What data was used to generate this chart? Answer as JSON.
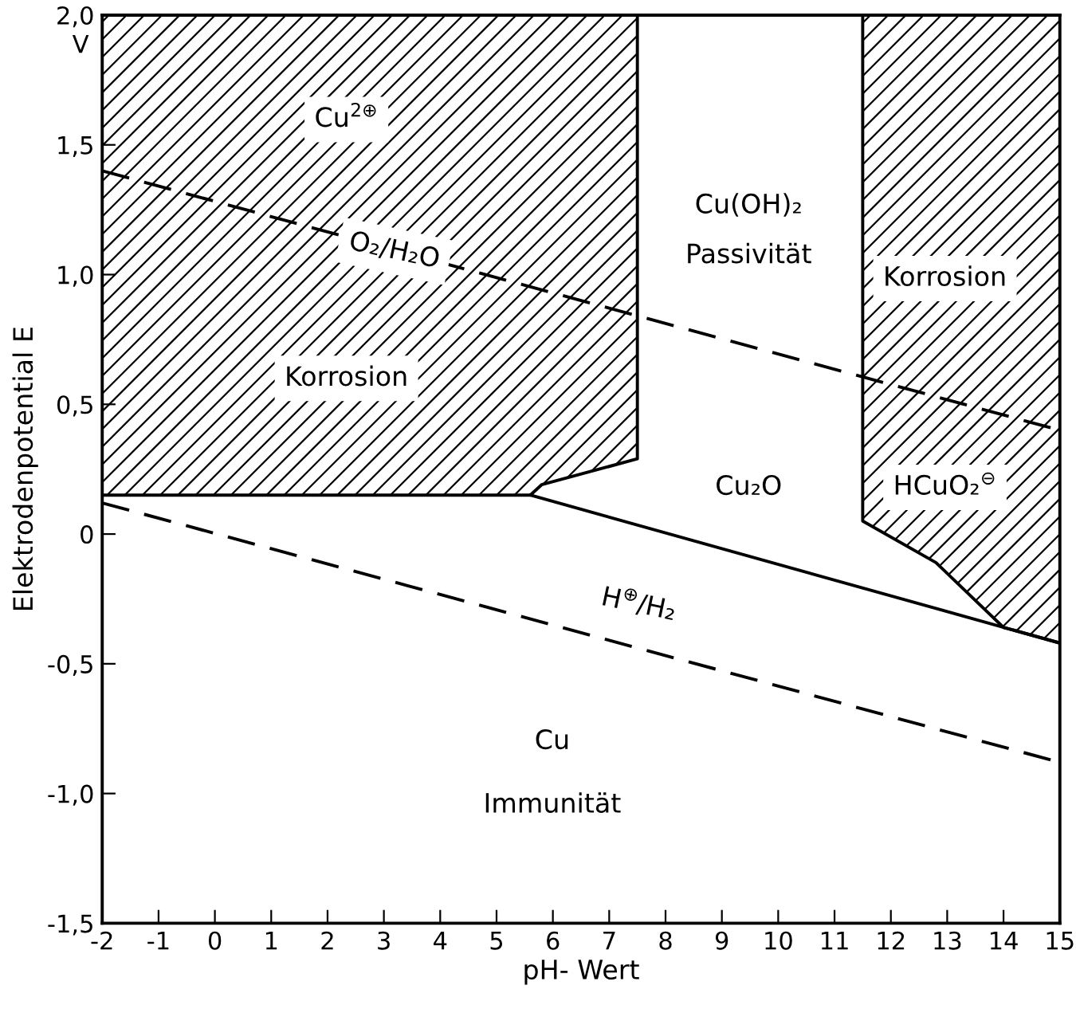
{
  "chart_data": {
    "type": "line",
    "xlabel": "pH- Wert",
    "ylabel": "Elektrodenpotential E",
    "xlim": [
      -2,
      15
    ],
    "ylim": [
      -1.5,
      2.0
    ],
    "xticks": [
      -2,
      -1,
      0,
      1,
      2,
      3,
      4,
      5,
      6,
      7,
      8,
      9,
      10,
      11,
      12,
      13,
      14,
      15
    ],
    "yticks": [
      {
        "value": -1.5,
        "label": "-1,5"
      },
      {
        "value": -1.0,
        "label": "-1,0"
      },
      {
        "value": -0.5,
        "label": "-0,5"
      },
      {
        "value": 0,
        "label": "0"
      },
      {
        "value": 0.5,
        "label": "0,5"
      },
      {
        "value": 1.0,
        "label": "1,0"
      },
      {
        "value": 1.5,
        "label": "1,5"
      },
      {
        "value": 2.0,
        "label": "2,0"
      }
    ],
    "grid": false,
    "legend": false,
    "series": [
      {
        "color": "#000000",
        "line_style": "solid",
        "x": [
          -2,
          5.6,
          5.8,
          7.5,
          7.5
        ],
        "values": [
          0.15,
          0.15,
          0.19,
          0.29,
          2.0
        ],
        "lower": [
          0.15,
          0.15,
          0.19,
          0.29,
          2.0
        ],
        "upper": [
          2.0,
          2.0,
          2.0,
          2.0,
          2.0
        ]
      },
      {
        "color": "#000000",
        "line_style": "solid",
        "x": [
          11.5,
          11.5,
          12.8,
          14,
          15
        ],
        "values": [
          2.0,
          0.05,
          -0.11,
          -0.36,
          -0.42
        ],
        "lower": [
          2.0,
          0.05,
          -0.11,
          -0.36,
          -0.42
        ],
        "upper": [
          2.0,
          2.0,
          2.0,
          2.0,
          2.0
        ]
      },
      {
        "color": "#000000",
        "line_style": "solid",
        "x": [
          5.6,
          15
        ],
        "values": [
          0.15,
          -0.42
        ]
      },
      {
        "color": "#000000",
        "line_style": "dashed",
        "x": [
          -2,
          15
        ],
        "values": [
          1.4,
          0.4
        ]
      },
      {
        "color": "#000000",
        "line_style": "dashed",
        "x": [
          -2,
          15
        ],
        "values": [
          0.12,
          -0.88
        ]
      }
    ],
    "annotations": [
      "V",
      "Cu$^{2⊕}$",
      "O₂/H₂O",
      "Korrosion",
      "Cu(OH)₂",
      "Passivität",
      "Cu₂O",
      "Korrosion",
      "HCuO₂$^{⊖}$",
      "H$^{⊕}$/H₂",
      "Cu",
      "Immunität"
    ]
  }
}
